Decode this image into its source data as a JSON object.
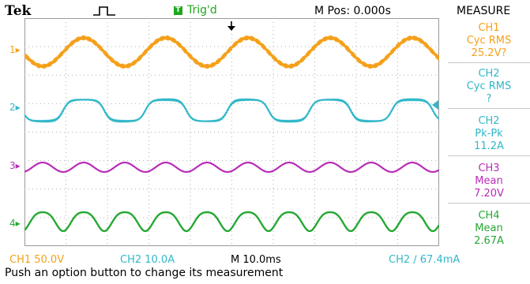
{
  "header": {
    "brand": "Tek",
    "trigger_status": "Trig'd",
    "trigger_badge": "T",
    "position": "M Pos: 0.000s",
    "menu_title": "MEASURE"
  },
  "channels": [
    {
      "id": "1",
      "color": "#f5a01a"
    },
    {
      "id": "2",
      "color": "#31b7c9"
    },
    {
      "id": "3",
      "color": "#b82cb8"
    },
    {
      "id": "4",
      "color": "#25a833"
    }
  ],
  "measurements": [
    {
      "line1": "CH1",
      "line2": "Cyc RMS",
      "value": "25.2V?",
      "color": "#f5a01a"
    },
    {
      "line1": "CH2",
      "line2": "Cyc RMS",
      "value": "?",
      "color": "#31b7c9"
    },
    {
      "line1": "CH2",
      "line2": "Pk-Pk",
      "value": "11.2A",
      "color": "#31b7c9"
    },
    {
      "line1": "CH3",
      "line2": "Mean",
      "value": "7.20V",
      "color": "#b82cb8"
    },
    {
      "line1": "CH4",
      "line2": "Mean",
      "value": "2.67A",
      "color": "#25a833"
    }
  ],
  "readout": {
    "ch1": "CH1  50.0V",
    "ch2": "CH2  10.0A",
    "timebase": "M 10.0ms",
    "trigger": "CH2 ∕ 67.4mA"
  },
  "hint": "Push an option button to change its measurement"
}
